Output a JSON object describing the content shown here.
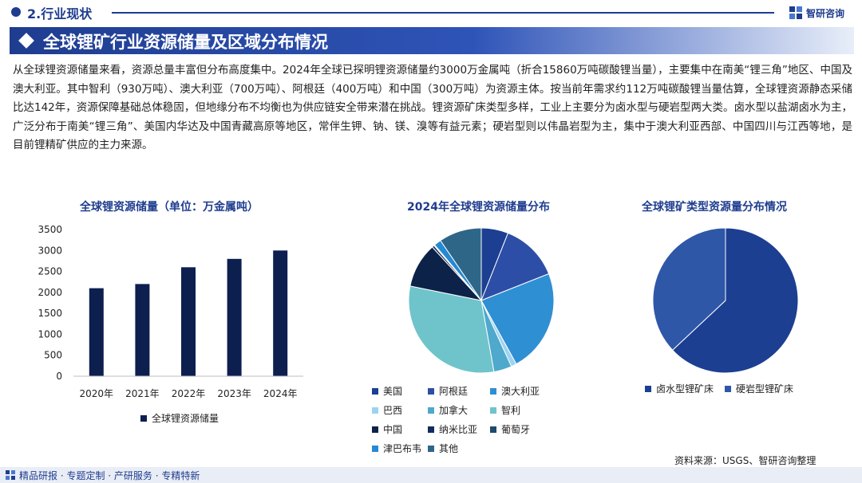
{
  "header": {
    "section": "2.行业现状",
    "brand": "智研咨询"
  },
  "title": "全球锂矿行业资源储量及区域分布情况",
  "intro": "从全球锂资源储量来看，资源总量丰富但分布高度集中。2024年全球已探明锂资源储量约3000万金属吨（折合15860万吨碳酸锂当量），主要集中在南美“锂三角”地区、中国及澳大利亚。其中智利（930万吨）、澳大利亚（700万吨）、阿根廷（400万吨）和中国（300万吨）为资源主体。按当前年需求约112万吨碳酸锂当量估算，全球锂资源静态采储比达142年，资源保障基础总体稳固，但地缘分布不均衡也为供应链安全带来潜在挑战。锂资源矿床类型多样，工业上主要分为卤水型与硬岩型两大类。卤水型以盐湖卤水为主，广泛分布于南美“锂三角”、美国内华达及中国青藏高原等地区，常伴生钾、钠、镁、溴等有益元素；硬岩型则以伟晶岩型为主，集中于澳大利亚西部、中国四川与江西等地，是目前锂精矿供应的主力来源。",
  "colors": {
    "primary": "#1f3d8f",
    "bar": "#0d1f4f"
  },
  "chart_data": [
    {
      "type": "bar",
      "title": "全球锂资源储量（单位：万金属吨）",
      "categories": [
        "2020年",
        "2021年",
        "2022年",
        "2023年",
        "2024年"
      ],
      "series": [
        {
          "name": "全球锂资源储量",
          "values": [
            2100,
            2200,
            2600,
            2800,
            3000
          ]
        }
      ],
      "ylim": [
        0,
        3500
      ],
      "yticks": [
        "0",
        "500",
        "1000",
        "1500",
        "2000",
        "2500",
        "3000",
        "3500"
      ],
      "legend": "bottom"
    },
    {
      "type": "pie",
      "title": "2024年全球锂资源储量分布",
      "labels": [
        "美国",
        "阿根廷",
        "澳大利亚",
        "巴西",
        "加拿大",
        "智利",
        "中国",
        "纳米比亚",
        "葡萄牙",
        "津巴布韦",
        "其他"
      ],
      "values": [
        6,
        13,
        23,
        1.2,
        4,
        31,
        10,
        0.5,
        0.2,
        1.6,
        9.5
      ],
      "colors": [
        "#1c3f91",
        "#2d4ea6",
        "#2f8fd3",
        "#9dd3f0",
        "#4ea9cc",
        "#6fc4cb",
        "#0d2248",
        "#132c5e",
        "#1f4a6e",
        "#2589d4",
        "#2e6688"
      ],
      "legend": "bottom"
    },
    {
      "type": "pie",
      "title": "全球锂矿类型资源量分布情况",
      "labels": [
        "卤水型锂矿床",
        "硬岩型锂矿床"
      ],
      "values": [
        63,
        37
      ],
      "colors": [
        "#1c3f91",
        "#2f57a8"
      ],
      "legend": "bottom"
    }
  ],
  "source": "资料来源：USGS、智研咨询整理",
  "footer": "精品研报 · 专题定制 · 产研服务 · 专精特新"
}
